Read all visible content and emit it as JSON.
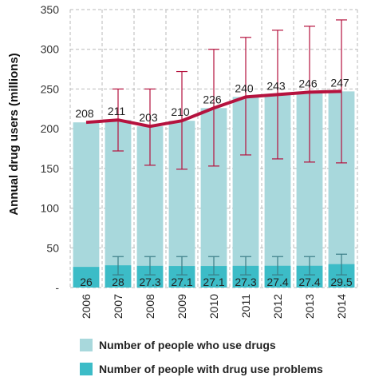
{
  "chart_data": {
    "type": "bar",
    "ylabel": "Annual drug users (millions)",
    "ylim": [
      0,
      350
    ],
    "yticks": [
      "350",
      "300",
      "250",
      "200",
      "150",
      "100",
      "50",
      "-"
    ],
    "categories": [
      "2006",
      "2007",
      "2008",
      "2009",
      "2010",
      "2011",
      "2012",
      "2013",
      "2014"
    ],
    "series": [
      {
        "name": "Number of people who use drugs",
        "type": "bar",
        "color": "#a8d8dc",
        "values": [
          208,
          211,
          203,
          210,
          226,
          240,
          243,
          246,
          247
        ]
      },
      {
        "name": "Number of people with drug use problems",
        "type": "bar",
        "color": "#3cbcc7",
        "values": [
          26,
          28,
          27.3,
          27.1,
          27.1,
          27.3,
          27.4,
          27.4,
          29.5
        ],
        "labels": [
          "26",
          "28",
          "27.3",
          "27.1",
          "27.1",
          "27.3",
          "27.4",
          "27.4",
          "29.5"
        ],
        "error_low": [
          null,
          16,
          16,
          16,
          16,
          16,
          16,
          16,
          16
        ],
        "error_high": [
          null,
          39,
          39,
          39,
          39,
          39,
          39,
          39,
          42
        ]
      },
      {
        "type": "line",
        "color": "#b5123e",
        "values": [
          208,
          211,
          203,
          210,
          226,
          240,
          243,
          246,
          247
        ],
        "labels": [
          "208",
          "211",
          "203",
          "210",
          "226",
          "240",
          "243",
          "246",
          "247"
        ],
        "error_low": [
          null,
          172,
          154,
          149,
          153,
          167,
          162,
          158,
          157
        ],
        "error_high": [
          null,
          250,
          250,
          272,
          300,
          315,
          324,
          329,
          337
        ]
      }
    ],
    "grid": true
  },
  "legend": {
    "items": [
      {
        "label": "Number of people who use drugs",
        "color": "#a8d8dc"
      },
      {
        "label": "Number of people with drug use problems",
        "color": "#3cbcc7"
      }
    ]
  }
}
